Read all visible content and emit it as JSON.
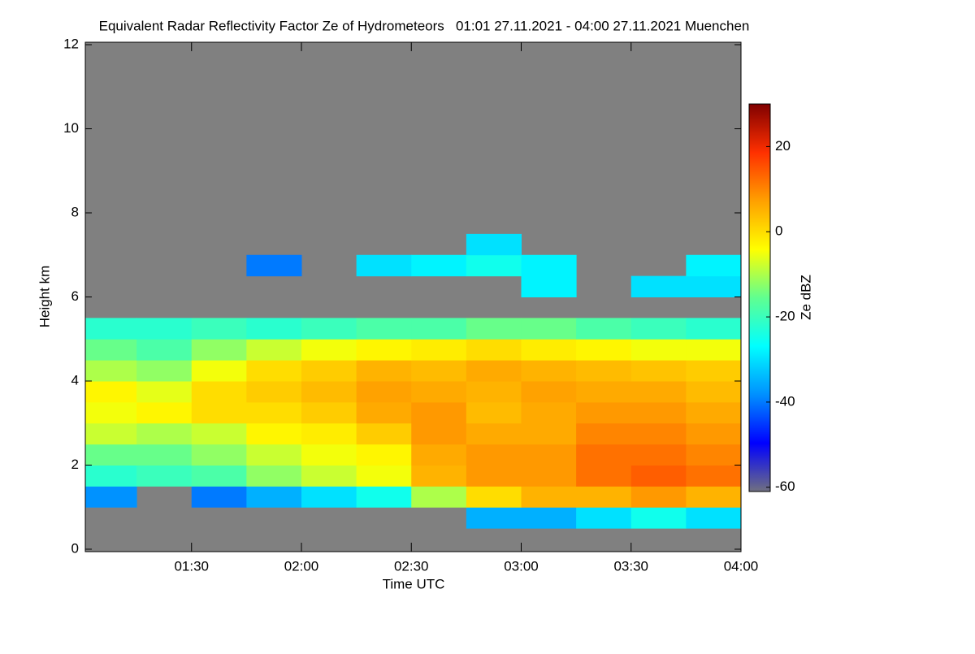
{
  "chart_data": {
    "type": "heatmap",
    "title": "Equivalent Radar Reflectivity Factor Ze of Hydrometeors   01:01 27.11.2021 - 04:00 27.11.2021 Muenchen",
    "x_label": "Time UTC",
    "y_label": "Height km",
    "xlim": [
      61,
      240
    ],
    "xticks": [
      {
        "value": 90,
        "label": "01:30"
      },
      {
        "value": 120,
        "label": "02:00"
      },
      {
        "value": 150,
        "label": "02:30"
      },
      {
        "value": 180,
        "label": "03:00"
      },
      {
        "value": 210,
        "label": "03:30"
      },
      {
        "value": 240,
        "label": "04:00"
      }
    ],
    "ylim": [
      0,
      12
    ],
    "yticks": [
      0,
      2,
      4,
      6,
      8,
      10,
      12
    ],
    "xbins": [
      61,
      75,
      90,
      105,
      120,
      135,
      150,
      165,
      180,
      195,
      210,
      225,
      240
    ],
    "ybins": [
      0,
      0.5,
      1,
      1.5,
      2,
      2.5,
      3,
      3.5,
      4,
      4.5,
      5,
      5.5,
      6,
      6.5,
      7,
      7.5
    ],
    "z": [
      [
        null,
        null,
        null,
        null,
        null,
        null,
        null,
        null,
        null,
        null,
        null,
        null
      ],
      [
        null,
        null,
        null,
        null,
        null,
        null,
        null,
        -35,
        -35,
        -30,
        -25,
        -30
      ],
      [
        -38,
        null,
        -40,
        -35,
        -30,
        -25,
        -10,
        0,
        5,
        5,
        8,
        5
      ],
      [
        -22,
        -20,
        -18,
        -12,
        -8,
        -5,
        5,
        8,
        8,
        12,
        14,
        12
      ],
      [
        -15,
        -15,
        -12,
        -8,
        -5,
        -3,
        6,
        8,
        8,
        12,
        12,
        10
      ],
      [
        -8,
        -10,
        -8,
        -3,
        -2,
        2,
        8,
        6,
        6,
        10,
        10,
        8
      ],
      [
        -5,
        -3,
        0,
        0,
        2,
        6,
        8,
        4,
        6,
        8,
        8,
        6
      ],
      [
        -3,
        -6,
        0,
        2,
        4,
        7,
        6,
        5,
        7,
        6,
        6,
        4
      ],
      [
        -10,
        -12,
        -5,
        0,
        2,
        5,
        4,
        6,
        5,
        4,
        3,
        2
      ],
      [
        -15,
        -18,
        -12,
        -8,
        -5,
        -3,
        -2,
        0,
        -2,
        -3,
        -5,
        -5
      ],
      [
        -22,
        -22,
        -20,
        -22,
        -20,
        -18,
        -18,
        -15,
        -15,
        -18,
        -20,
        -22
      ],
      [
        null,
        null,
        null,
        null,
        null,
        null,
        null,
        null,
        null,
        null,
        null,
        null
      ],
      [
        null,
        null,
        null,
        null,
        null,
        null,
        null,
        null,
        -28,
        null,
        -30,
        -30
      ],
      [
        null,
        null,
        null,
        -40,
        null,
        -30,
        -28,
        -25,
        -28,
        null,
        null,
        -28
      ],
      [
        null,
        null,
        null,
        null,
        null,
        null,
        null,
        -30,
        null,
        null,
        null,
        null
      ]
    ],
    "background": "#808080",
    "colorbar_label": "Ze dBZ",
    "clim": [
      -61,
      30
    ],
    "cticks": [
      -60,
      -40,
      -20,
      0,
      20
    ],
    "colormap": [
      "#707080",
      "#0000ff",
      "#0090ff",
      "#00ffff",
      "#60ff90",
      "#ffff00",
      "#ffa000",
      "#ff3000",
      "#800000"
    ]
  }
}
